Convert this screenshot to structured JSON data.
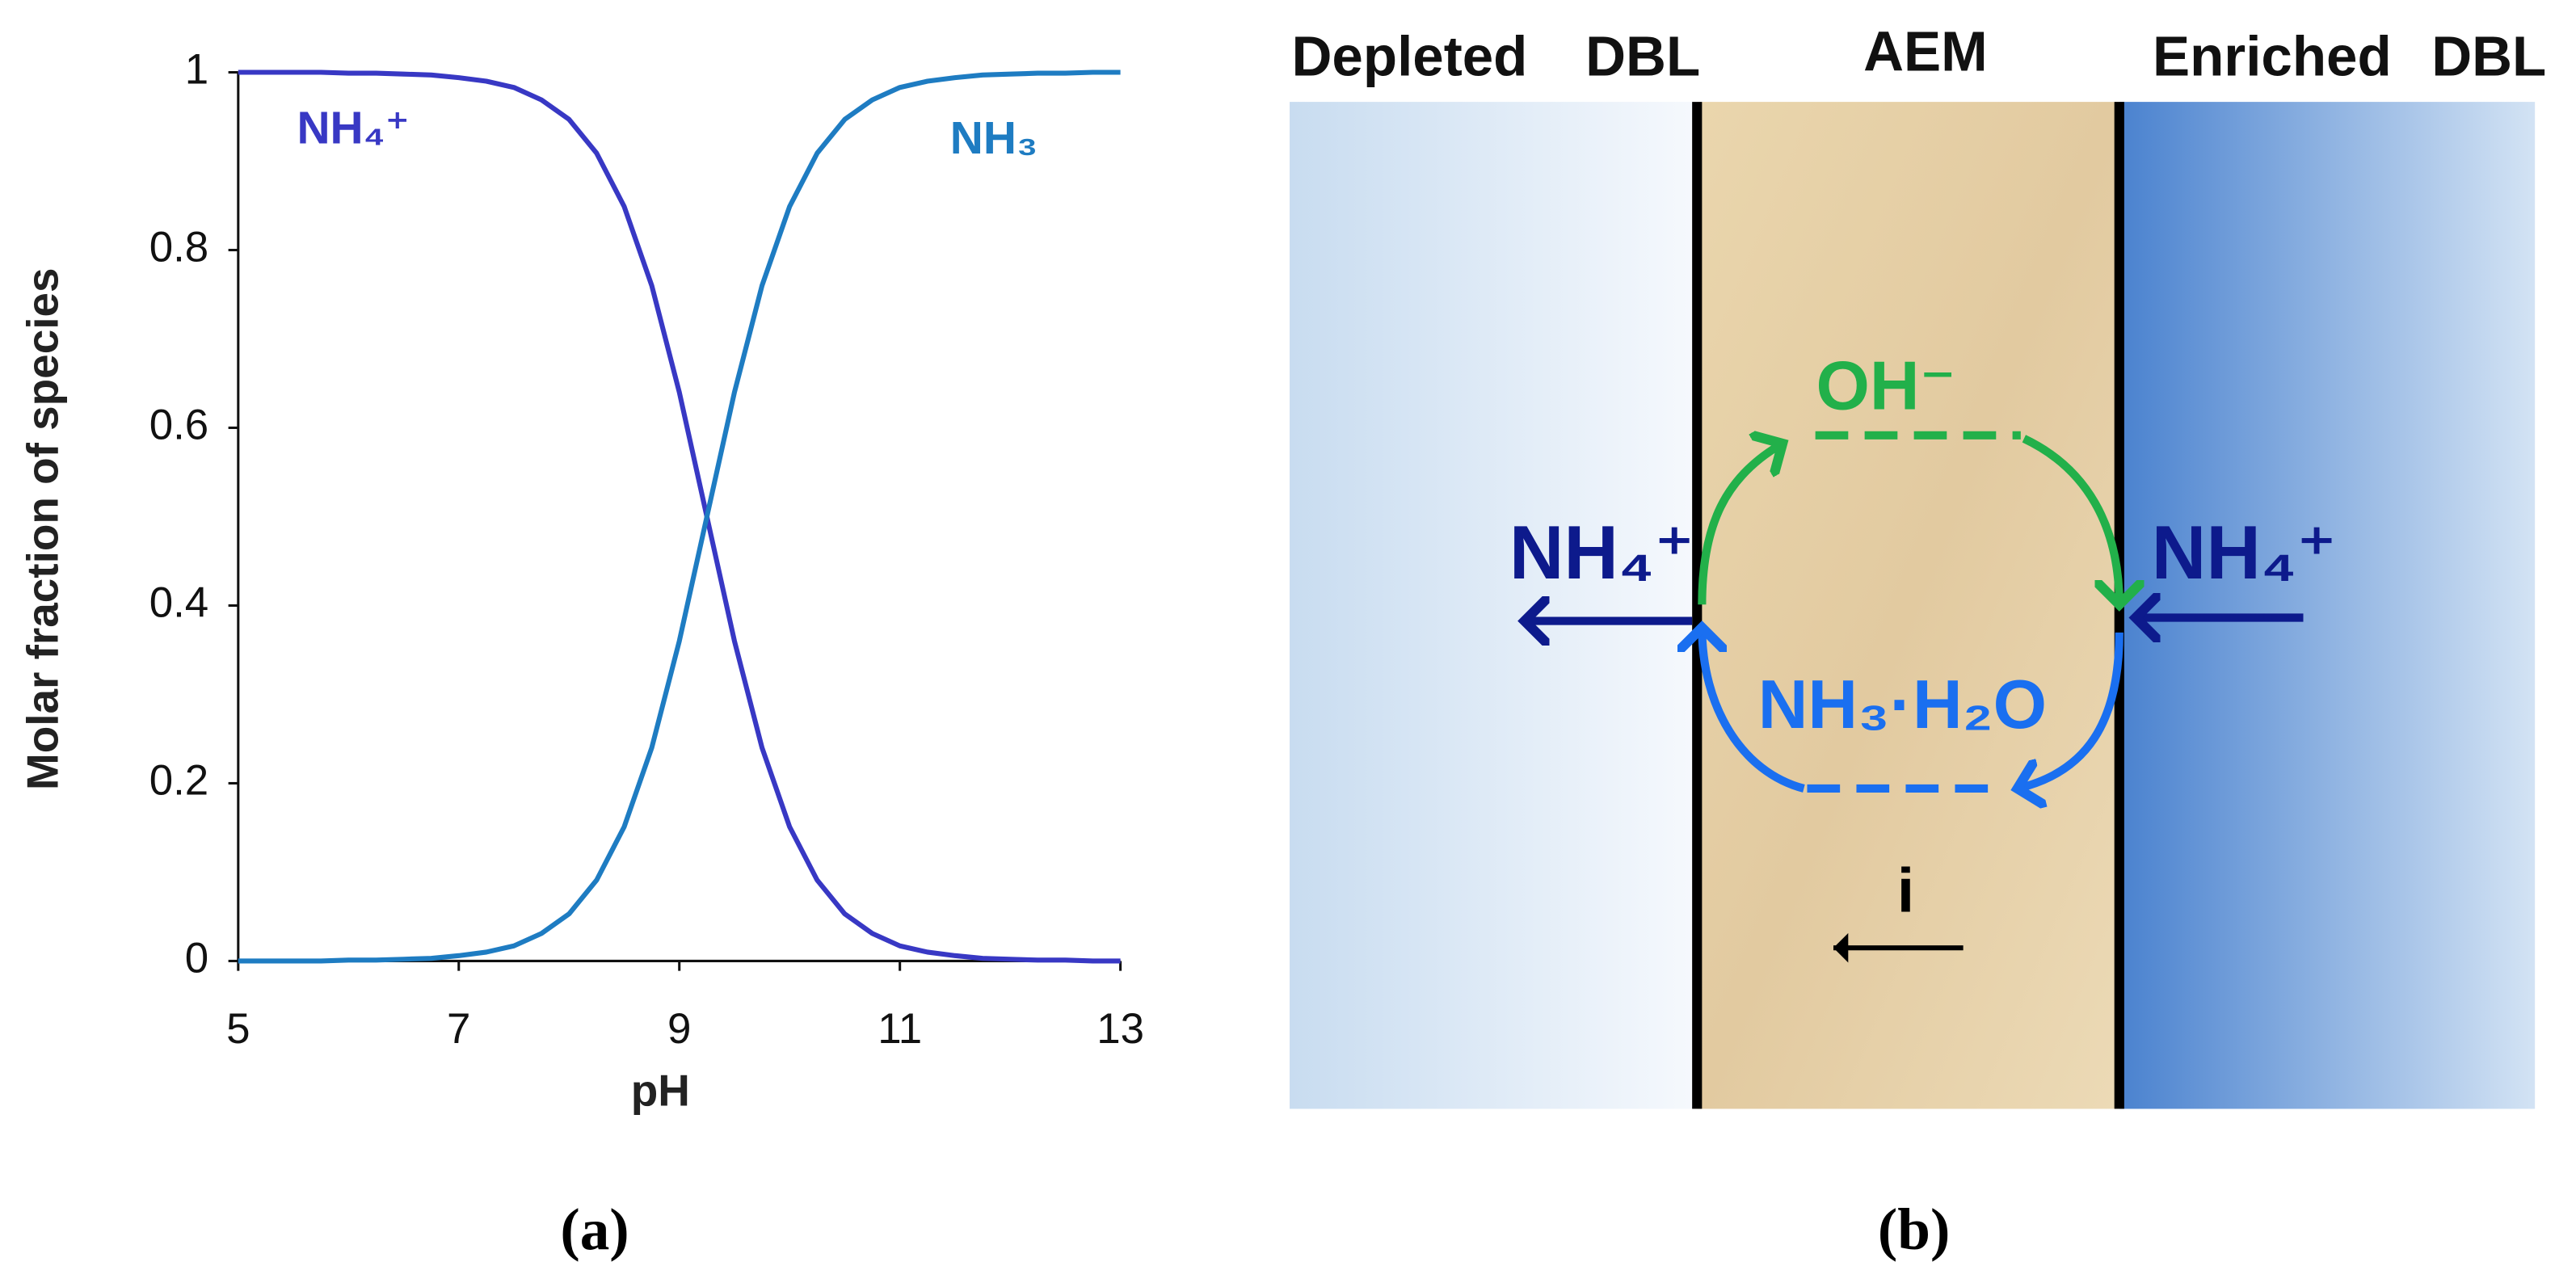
{
  "chart_data": {
    "type": "line",
    "x_label": "pH",
    "y_label": "Molar fraction of species",
    "x": [
      5,
      5.25,
      5.5,
      5.75,
      6,
      6.25,
      6.5,
      6.75,
      7,
      7.25,
      7.5,
      7.75,
      8,
      8.25,
      8.5,
      8.75,
      9,
      9.25,
      9.5,
      9.75,
      10,
      10.25,
      10.5,
      10.75,
      11,
      11.25,
      11.5,
      11.75,
      12,
      12.25,
      12.5,
      12.75,
      13
    ],
    "series": [
      {
        "name": "NH₄⁺",
        "color": "#3838c4",
        "values": [
          1,
          1,
          1,
          1,
          0.999,
          0.999,
          0.998,
          0.997,
          0.994,
          0.99,
          0.983,
          0.969,
          0.947,
          0.909,
          0.849,
          0.76,
          0.64,
          0.5,
          0.36,
          0.24,
          0.151,
          0.091,
          0.053,
          0.031,
          0.017,
          0.01,
          0.006,
          0.003,
          0.002,
          0.001,
          0.001,
          0,
          0
        ]
      },
      {
        "name": "NH₃",
        "color": "#1e7cc2",
        "values": [
          0,
          0,
          0,
          0,
          0.001,
          0.001,
          0.002,
          0.003,
          0.006,
          0.01,
          0.017,
          0.031,
          0.053,
          0.091,
          0.151,
          0.24,
          0.36,
          0.5,
          0.64,
          0.76,
          0.849,
          0.909,
          0.947,
          0.969,
          0.983,
          0.99,
          0.994,
          0.997,
          0.998,
          0.999,
          0.999,
          1,
          1
        ]
      }
    ],
    "xlim": [
      5,
      13
    ],
    "xticks": [
      5,
      7,
      9,
      11,
      13
    ],
    "ylim": [
      0,
      1
    ],
    "yticks": [
      0,
      0.2,
      0.4,
      0.6,
      0.8,
      1
    ],
    "grid": false
  },
  "diagram": {
    "headers": [
      "Depleted",
      "DBL",
      "AEM",
      "Enriched",
      "DBL"
    ],
    "labels": {
      "hydroxide": "OH⁻",
      "ammonium_left": "NH₄⁺",
      "ammonium_right": "NH₄⁺",
      "ammonia": "NH₃·H₂O",
      "current": "i"
    }
  },
  "captions": [
    "(a)",
    "(b)"
  ]
}
